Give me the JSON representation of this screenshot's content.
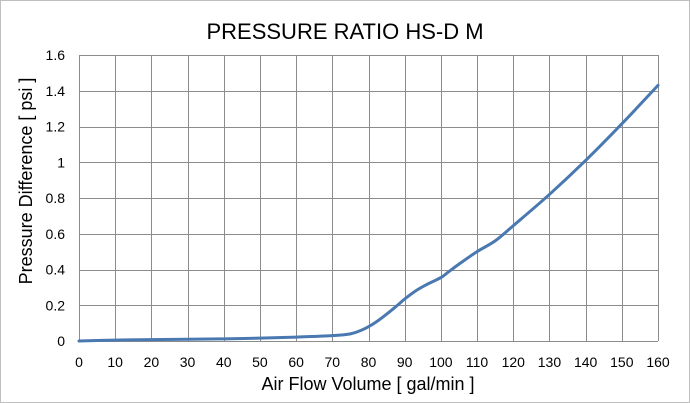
{
  "chart_data": {
    "type": "line",
    "title": "PRESSURE RATIO HS-D M",
    "xlabel": "Air Flow Volume [ gal/min ]",
    "ylabel": "Pressure Difference [ psi ]",
    "xlim": [
      0,
      160
    ],
    "ylim": [
      0,
      1.6
    ],
    "x_ticks": [
      "0",
      "10",
      "20",
      "30",
      "40",
      "50",
      "60",
      "70",
      "80",
      "90",
      "100",
      "110",
      "120",
      "130",
      "140",
      "150",
      "160"
    ],
    "y_ticks": [
      "0",
      "0.2",
      "0.4",
      "0.6",
      "0.8",
      "1",
      "1.2",
      "1.4",
      "1.6"
    ],
    "grid": true,
    "legend": "none",
    "series_color": "#4a78b0",
    "series": [
      {
        "x": [
          0,
          10,
          20,
          30,
          40,
          50,
          60,
          70,
          75,
          78,
          80,
          82,
          85,
          88,
          90,
          93,
          96,
          100,
          102,
          105,
          110,
          115,
          120,
          130,
          140,
          150,
          160
        ],
        "values": [
          0.0,
          0.005,
          0.008,
          0.01,
          0.012,
          0.016,
          0.022,
          0.03,
          0.04,
          0.06,
          0.08,
          0.105,
          0.15,
          0.2,
          0.235,
          0.28,
          0.315,
          0.355,
          0.385,
          0.43,
          0.5,
          0.56,
          0.645,
          0.82,
          1.01,
          1.215,
          1.43
        ]
      }
    ]
  }
}
